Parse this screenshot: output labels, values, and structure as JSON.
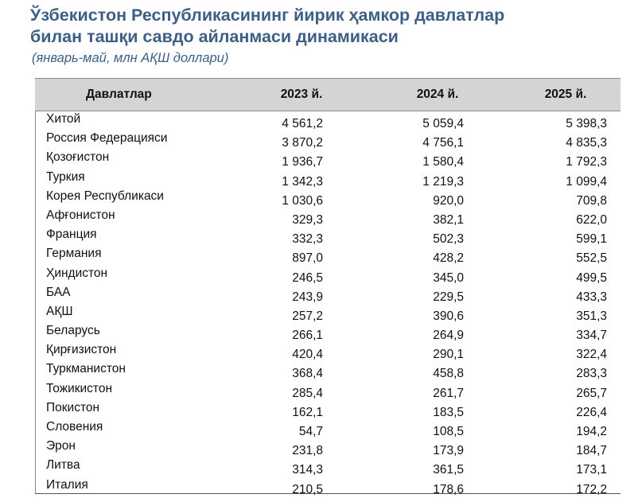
{
  "title_line1": "Ўзбекистон Республикасининг йирик ҳамкор давлатлар",
  "title_line2": "билан ташқи савдо айланмаси динамикаси",
  "subtitle": "(январь-май, млн АҚШ доллари)",
  "table": {
    "headers": [
      "Давлатлар",
      "2023 й.",
      "2024 й.",
      "2025 й."
    ],
    "rows": [
      [
        "Хитой",
        "4 561,2",
        "5 059,4",
        "5 398,3"
      ],
      [
        "Россия Федерацияси",
        "3 870,2",
        "4 756,1",
        "4 835,3"
      ],
      [
        "Қозоғистон",
        "1 936,7",
        "1 580,4",
        "1 792,3"
      ],
      [
        "Туркия",
        "1 342,3",
        "1 219,3",
        "1 099,4"
      ],
      [
        "Корея Республикаси",
        "1 030,6",
        "920,0",
        "709,8"
      ],
      [
        "Афғонистон",
        "329,3",
        "382,1",
        "622,0"
      ],
      [
        "Франция",
        "332,3",
        "502,3",
        "599,1"
      ],
      [
        "Германия",
        "897,0",
        "428,2",
        "552,5"
      ],
      [
        "Ҳиндистон",
        "246,5",
        "345,0",
        "499,5"
      ],
      [
        "БАА",
        "243,9",
        "229,5",
        "433,3"
      ],
      [
        "АҚШ",
        "257,2",
        "390,6",
        "351,3"
      ],
      [
        "Беларусь",
        "266,1",
        "264,9",
        "334,7"
      ],
      [
        "Қирғизистон",
        "420,4",
        "290,1",
        "322,4"
      ],
      [
        "Туркманистон",
        "368,4",
        "458,8",
        "283,3"
      ],
      [
        "Тожикистон",
        "285,4",
        "261,7",
        "265,7"
      ],
      [
        "Покистон",
        "162,1",
        "183,5",
        "226,4"
      ],
      [
        "Словения",
        "54,7",
        "108,5",
        "194,2"
      ],
      [
        "Эрон",
        "231,8",
        "173,9",
        "184,7"
      ],
      [
        "Литва",
        "314,3",
        "361,5",
        "173,1"
      ],
      [
        "Италия",
        "210,5",
        "178,6",
        "172,2"
      ]
    ]
  }
}
